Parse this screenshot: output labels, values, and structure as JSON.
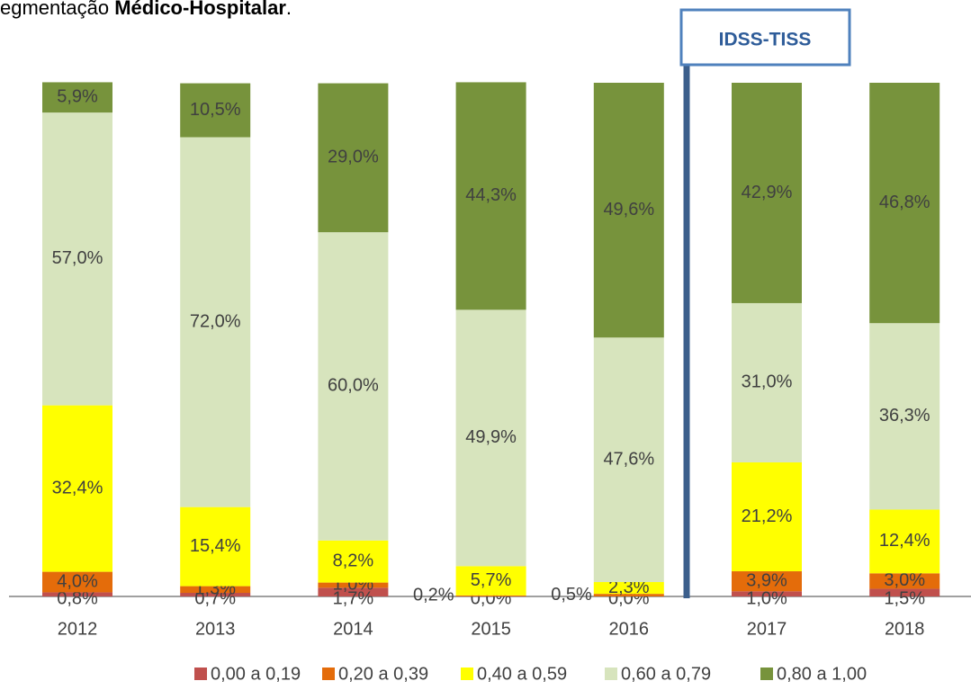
{
  "chart_data": {
    "type": "stacked_bar",
    "title": "egmentação ",
    "title_bold": "Médico-Hospitalar",
    "title_end": ".",
    "annotation": "IDSS-TISS",
    "categories": [
      "2012",
      "2013",
      "2014",
      "2015",
      "2016",
      "2017",
      "2018"
    ],
    "ylim": [
      0,
      100
    ],
    "series": [
      {
        "name": "0,00 a 0,19",
        "color": "#c0504d",
        "values": [
          0.8,
          0.7,
          1.7,
          0.0,
          0.0,
          1.0,
          1.5
        ],
        "value_labels": [
          "0,8%",
          "0,7%",
          "1,7%",
          "0,0%",
          "0,0%",
          "1,0%",
          "1,5%"
        ]
      },
      {
        "name": "0,20 a 0,39",
        "color": "#e46c0a",
        "values": [
          4.0,
          1.3,
          1.0,
          0.2,
          0.5,
          3.9,
          3.0
        ],
        "value_labels": [
          "4,0%",
          "1,3%",
          "1,0%",
          "0,2%",
          "0,5%",
          "3,9%",
          "3,0%"
        ]
      },
      {
        "name": "0,40 a 0,59",
        "color": "#ffff00",
        "values": [
          32.4,
          15.4,
          8.2,
          5.7,
          2.3,
          21.2,
          12.4
        ],
        "value_labels": [
          "32,4%",
          "15,4%",
          "8,2%",
          "5,7%",
          "2,3%",
          "21,2%",
          "12,4%"
        ]
      },
      {
        "name": "0,60 a 0,79",
        "color": "#d7e4bd",
        "values": [
          57.0,
          72.0,
          60.0,
          49.9,
          47.6,
          31.0,
          36.3
        ],
        "value_labels": [
          "57,0%",
          "72,0%",
          "60,0%",
          "49,9%",
          "47,6%",
          "31,0%",
          "36,3%"
        ]
      },
      {
        "name": "0,80 a 1,00",
        "color": "#77933c",
        "values": [
          5.9,
          10.5,
          29.0,
          44.3,
          49.6,
          42.9,
          46.8
        ],
        "value_labels": [
          "5,9%",
          "10,5%",
          "29,0%",
          "44,3%",
          "49,6%",
          "42,9%",
          "46,8%"
        ]
      }
    ]
  }
}
